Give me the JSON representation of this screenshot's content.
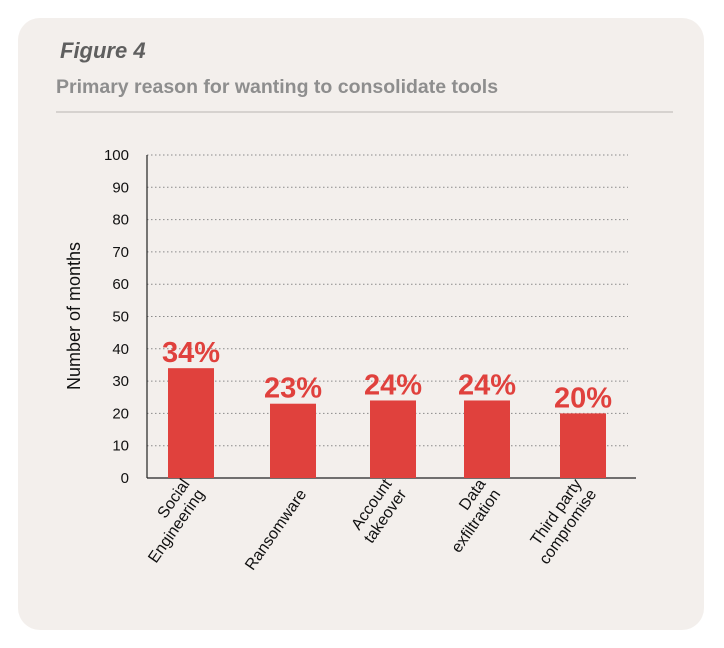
{
  "figure_label": "Figure 4",
  "figure_title": "Primary reason for wanting to consolidate tools",
  "colors": {
    "bar": "#e0413d",
    "label": "#e0413d",
    "grid": "#8a8a8a",
    "axis": "#222222",
    "text": "#111111",
    "card": "#f3efec"
  },
  "chart_data": {
    "type": "bar",
    "title": "Primary reason for wanting to consolidate tools",
    "ylabel": "Number of months",
    "xlabel": "",
    "ylim": [
      0,
      100
    ],
    "yticks": [
      0,
      10,
      20,
      30,
      40,
      50,
      60,
      70,
      80,
      90,
      100
    ],
    "grid": true,
    "categories": [
      {
        "lines": [
          "Social",
          "Engineering"
        ]
      },
      {
        "lines": [
          "Ransomware"
        ]
      },
      {
        "lines": [
          "Account",
          "takeover"
        ]
      },
      {
        "lines": [
          "Data",
          "exfiltration"
        ]
      },
      {
        "lines": [
          "Third party",
          "compromise"
        ]
      }
    ],
    "values": [
      34,
      23,
      24,
      24,
      20
    ],
    "data_labels": [
      "34%",
      "23%",
      "24%",
      "24%",
      "20%"
    ]
  }
}
